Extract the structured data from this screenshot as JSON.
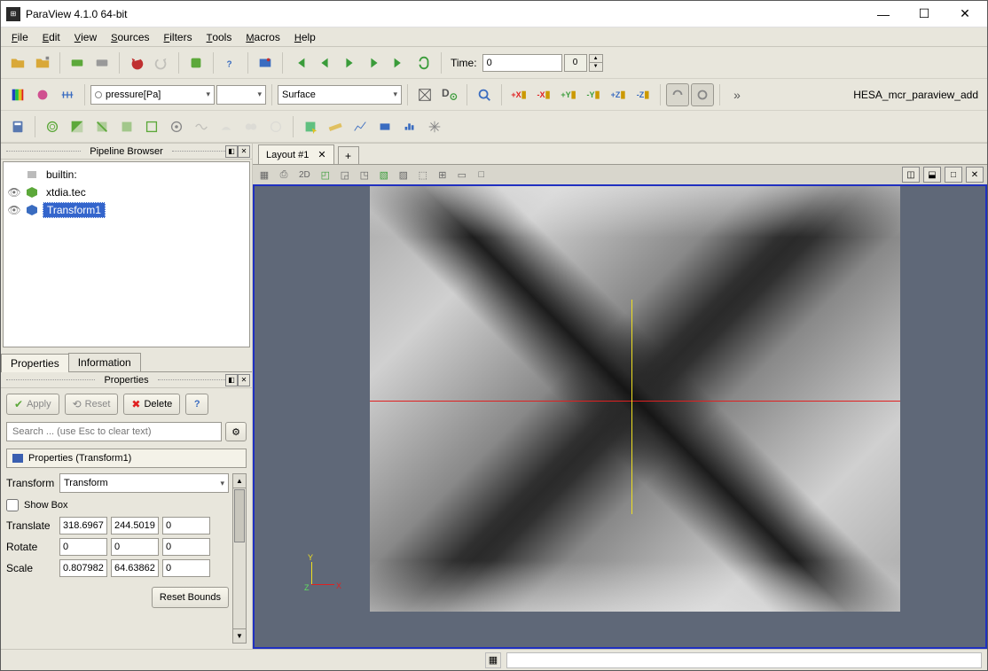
{
  "window": {
    "title": "ParaView 4.1.0 64-bit"
  },
  "menubar": [
    {
      "label": "File",
      "u": 0
    },
    {
      "label": "Edit",
      "u": 0
    },
    {
      "label": "View",
      "u": 0
    },
    {
      "label": "Sources",
      "u": 0
    },
    {
      "label": "Filters",
      "u": 0
    },
    {
      "label": "Tools",
      "u": 0
    },
    {
      "label": "Macros",
      "u": 0
    },
    {
      "label": "Help",
      "u": 0
    }
  ],
  "toolbar1": {
    "time_label": "Time:",
    "time_value": "0",
    "time_frame": "0"
  },
  "toolbar2": {
    "variable_combo": "pressure[Pa]",
    "repr_combo": "Surface",
    "right_label": "HESA_mcr_paraview_add"
  },
  "pipeline": {
    "title": "Pipeline Browser",
    "items": [
      {
        "eye": "",
        "icon": "server",
        "label": "builtin:",
        "indent": 0,
        "sel": false
      },
      {
        "eye": "👁",
        "icon": "cube-g",
        "label": "xtdia.tec",
        "indent": 0,
        "sel": false
      },
      {
        "eye": "👁",
        "icon": "cube-b",
        "label": "Transform1",
        "indent": 0,
        "sel": true
      }
    ]
  },
  "prop_tabs": {
    "active": "Properties",
    "other": "Information"
  },
  "properties": {
    "panel_title": "Properties",
    "apply": "Apply",
    "reset": "Reset",
    "delete": "Delete",
    "search_placeholder": "Search ... (use Esc to clear text)",
    "section": "Properties (Transform1)",
    "transform_label": "Transform",
    "transform_value": "Transform",
    "showbox_label": "Show Box",
    "showbox_checked": false,
    "rows": [
      {
        "label": "Translate",
        "v": [
          "318.6967",
          "244.5019",
          "0"
        ]
      },
      {
        "label": "Rotate",
        "v": [
          "0",
          "0",
          "0"
        ]
      },
      {
        "label": "Scale",
        "v": [
          "0.807982",
          "64.63862",
          "0"
        ]
      }
    ],
    "reset_bounds": "Reset Bounds"
  },
  "layout": {
    "tab": "Layout #1",
    "view_mode": "2D"
  },
  "axes": {
    "x": "X",
    "y": "Y",
    "z": "Z"
  },
  "colors": {
    "viewport_bg": "#5f6878",
    "selection_border": "#2030c0",
    "crosshair_x": "#e02020",
    "crosshair_y": "#f0e020",
    "panel_bg": "#e8e6dc"
  }
}
